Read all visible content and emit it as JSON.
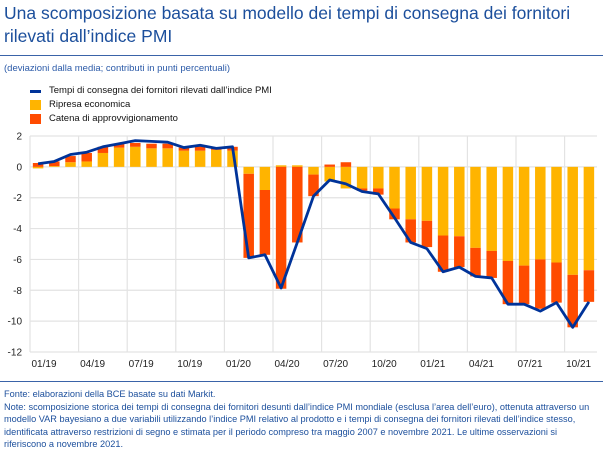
{
  "title": "Una scomposizione basata su modello dei tempi di consegna dei fornitori rilevati dall’indice PMI",
  "subtitle": "(deviazioni dalla media; contributi in punti percentuali)",
  "legend": [
    {
      "label": "Tempi di consegna dei fornitori rilevati dall’indice PMI",
      "type": "line",
      "color": "#003399"
    },
    {
      "label": "Ripresa economica",
      "type": "bar",
      "color": "#ffb400"
    },
    {
      "label": "Catena di approvvigionamento",
      "type": "bar",
      "color": "#ff4b00"
    }
  ],
  "footer": {
    "source": "Fonte: elaborazioni della BCE basate su dati Markit.",
    "note": "Note: scomposizione storica dei tempi di consegna dei fornitori desunti dall’indice PMI mondiale (esclusa l’area dell’euro), ottenuta attraverso un modello VAR bayesiano a due variabili utilizzando l’indice PMI relativo al prodotto e i tempi di consegna dei fornitori rilevati dell’indice stesso, identificata attraverso restrizioni di segno e stimata per il periodo compreso tra maggio 2007 e novembre 2021. Le ultime osservazioni si riferiscono a novembre 2021."
  },
  "chart_data": {
    "type": "bar",
    "stacked": true,
    "title": "Una scomposizione basata su modello dei tempi di consegna dei fornitori rilevati dall’indice PMI",
    "xlabel": "",
    "ylabel": "",
    "ylim": [
      -12,
      2
    ],
    "yticks": [
      2,
      0,
      -2,
      -4,
      -6,
      -8,
      -10,
      -12
    ],
    "grid": true,
    "legend_position": "top-left",
    "xtick_labels": [
      "01/19",
      "04/19",
      "07/19",
      "10/19",
      "01/20",
      "04/20",
      "07/20",
      "10/20",
      "01/21",
      "04/21",
      "07/21",
      "10/21"
    ],
    "categories": [
      "01/19",
      "02/19",
      "03/19",
      "04/19",
      "05/19",
      "06/19",
      "07/19",
      "08/19",
      "09/19",
      "10/19",
      "11/19",
      "12/19",
      "01/20",
      "02/20",
      "03/20",
      "04/20",
      "05/20",
      "06/20",
      "07/20",
      "08/20",
      "09/20",
      "10/20",
      "11/20",
      "12/20",
      "01/21",
      "02/21",
      "03/21",
      "04/21",
      "05/21",
      "06/21",
      "07/21",
      "08/21",
      "09/21",
      "10/21",
      "11/21"
    ],
    "series": [
      {
        "name": "Ripresa economica",
        "type": "bar",
        "color": "#ffb400",
        "values": [
          -0.1,
          0.05,
          0.3,
          0.35,
          0.9,
          1.25,
          1.3,
          1.2,
          1.2,
          1.05,
          1.05,
          1.1,
          1.05,
          -0.45,
          -1.5,
          0.1,
          0.1,
          -0.5,
          -0.95,
          -1.4,
          -1.4,
          -1.4,
          -2.7,
          -3.4,
          -3.5,
          -4.45,
          -4.5,
          -5.25,
          -5.45,
          -6.1,
          -6.4,
          -6.0,
          -6.2,
          -7.0,
          -6.7
        ]
      },
      {
        "name": "Catena di approvvigionamento",
        "type": "bar",
        "color": "#ff4b00",
        "values": [
          0.25,
          0.3,
          0.4,
          0.55,
          0.4,
          0.25,
          0.25,
          0.3,
          0.3,
          0.2,
          0.3,
          0.1,
          0.25,
          -5.45,
          -4.2,
          -7.9,
          -4.9,
          -1.4,
          0.15,
          0.3,
          -0.15,
          -0.4,
          -0.7,
          -1.5,
          -1.7,
          -2.35,
          -2.0,
          -1.85,
          -1.75,
          -2.8,
          -2.5,
          -3.2,
          -2.6,
          -3.4,
          -2.05
        ]
      },
      {
        "name": "Tempi di consegna dei fornitori rilevati dall’indice PMI",
        "type": "line",
        "color": "#003399",
        "values": [
          0.2,
          0.35,
          0.8,
          0.95,
          1.3,
          1.5,
          1.7,
          1.65,
          1.6,
          1.25,
          1.4,
          1.2,
          1.3,
          -5.9,
          -5.7,
          -7.85,
          -4.9,
          -1.9,
          -0.85,
          -1.1,
          -1.6,
          -1.75,
          -3.3,
          -4.9,
          -5.3,
          -6.8,
          -6.5,
          -7.1,
          -7.2,
          -8.9,
          -8.9,
          -9.35,
          -8.8,
          -10.4,
          -8.75
        ]
      }
    ]
  }
}
